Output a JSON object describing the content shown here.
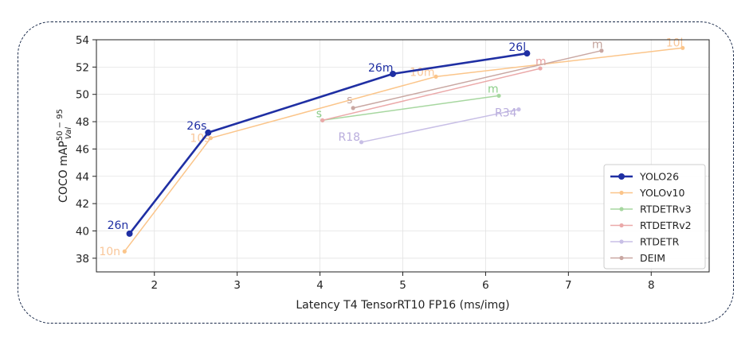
{
  "chart_data": {
    "type": "line",
    "xlabel": "Latency T4 TensorRT10 FP16 (ms/img)",
    "ylabel": "COCO mAP",
    "ylabel_sup": "50 − 95",
    "ylabel_sub": "Val",
    "xlim": [
      1.3,
      8.7
    ],
    "ylim": [
      37,
      54
    ],
    "xticks": [
      2,
      3,
      4,
      5,
      6,
      7,
      8
    ],
    "yticks": [
      38,
      40,
      42,
      44,
      46,
      48,
      50,
      52,
      54
    ],
    "grid": true,
    "legend_position": "bottom-right",
    "series": [
      {
        "name": "YOLOv10",
        "color": "#fbc58a",
        "label_color": "#f9c79a",
        "x": [
          1.64,
          2.68,
          5.4,
          8.38
        ],
        "y": [
          38.5,
          46.8,
          51.3,
          53.4
        ],
        "labels": [
          "10n",
          "10s",
          "10m",
          "10l"
        ]
      },
      {
        "name": "RTDETRv3",
        "color": "#a7d7a0",
        "label_color": "#8ccf89",
        "x": [
          4.03,
          6.16
        ],
        "y": [
          48.1,
          49.9
        ],
        "labels": [
          "s",
          "m"
        ]
      },
      {
        "name": "RTDETRv2",
        "color": "#eba9a9",
        "label_color": "#e8a0a0",
        "x": [
          4.03,
          6.66
        ],
        "y": [
          48.1,
          51.9
        ],
        "labels": [
          "",
          "m"
        ]
      },
      {
        "name": "RTDETR",
        "color": "#c8bfe6",
        "label_color": "#b9addd",
        "x": [
          4.5,
          6.4
        ],
        "y": [
          46.5,
          48.9
        ],
        "labels": [
          "R18",
          "R34"
        ]
      },
      {
        "name": "DEIM",
        "color": "#c9a7a2",
        "label_color": "#c3a39c",
        "x": [
          4.4,
          7.4
        ],
        "y": [
          49.0,
          53.2
        ],
        "labels": [
          "s",
          "m"
        ]
      },
      {
        "name": "YOLO26",
        "color": "#1f2fa3",
        "label_color": "#1f2fa3",
        "x": [
          1.7,
          2.65,
          4.88,
          6.5
        ],
        "y": [
          39.8,
          47.2,
          51.5,
          53.0
        ],
        "labels": [
          "26n",
          "26s",
          "26m",
          "26l"
        ]
      }
    ],
    "legend_order": [
      "YOLO26",
      "YOLOv10",
      "RTDETRv3",
      "RTDETRv2",
      "RTDETR",
      "DEIM"
    ]
  }
}
